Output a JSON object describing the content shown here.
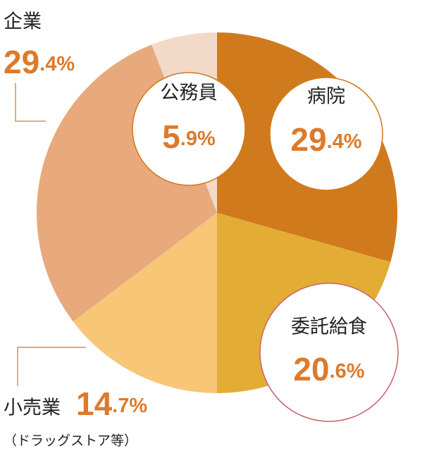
{
  "chart_data": {
    "type": "pie",
    "categories": [
      "病院",
      "委託給食",
      "小売業",
      "企業",
      "公務員"
    ],
    "values": [
      29.4,
      20.6,
      14.7,
      29.4,
      5.9
    ],
    "value_labels": [
      "29.4%",
      "20.6%",
      "14.7%",
      "29.4%",
      "5.9%"
    ],
    "colors": [
      "#d07a1e",
      "#e3ad35",
      "#f7c677",
      "#e8a97c",
      "#f2d9c8"
    ],
    "note": "（ドラッグストア等）"
  }
}
